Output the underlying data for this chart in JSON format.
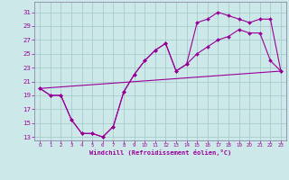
{
  "xlabel": "Windchill (Refroidissement éolien,°C)",
  "bg_color": "#cce8e8",
  "grid_color": "#aacccc",
  "line_color": "#990099",
  "spine_color": "#8888aa",
  "xlim": [
    -0.5,
    23.5
  ],
  "ylim": [
    12.5,
    32.5
  ],
  "yticks": [
    13,
    15,
    17,
    19,
    21,
    23,
    25,
    27,
    29,
    31
  ],
  "xticks": [
    0,
    1,
    2,
    3,
    4,
    5,
    6,
    7,
    8,
    9,
    10,
    11,
    12,
    13,
    14,
    15,
    16,
    17,
    18,
    19,
    20,
    21,
    22,
    23
  ],
  "line1_x": [
    0,
    1,
    2,
    3,
    4,
    5,
    6,
    7,
    8,
    9,
    10,
    11,
    12,
    13,
    14,
    15,
    16,
    17,
    18,
    19,
    20,
    21,
    22,
    23
  ],
  "line1_y": [
    20.0,
    19.0,
    19.0,
    15.5,
    13.5,
    13.5,
    13.0,
    14.5,
    19.5,
    22.0,
    24.0,
    25.5,
    26.5,
    22.5,
    23.5,
    29.5,
    30.0,
    31.0,
    30.5,
    30.0,
    29.5,
    30.0,
    30.0,
    22.5
  ],
  "line2_x": [
    0,
    1,
    2,
    3,
    4,
    5,
    6,
    7,
    8,
    9,
    10,
    11,
    12,
    13,
    14,
    15,
    16,
    17,
    18,
    19,
    20,
    21,
    22,
    23
  ],
  "line2_y": [
    20.0,
    19.0,
    19.0,
    15.5,
    13.5,
    13.5,
    13.0,
    14.5,
    19.5,
    22.0,
    24.0,
    25.5,
    26.5,
    22.5,
    23.5,
    25.0,
    26.0,
    27.0,
    27.5,
    28.5,
    28.0,
    28.0,
    24.0,
    22.5
  ],
  "line3_x": [
    0,
    23
  ],
  "line3_y": [
    20.0,
    22.5
  ]
}
